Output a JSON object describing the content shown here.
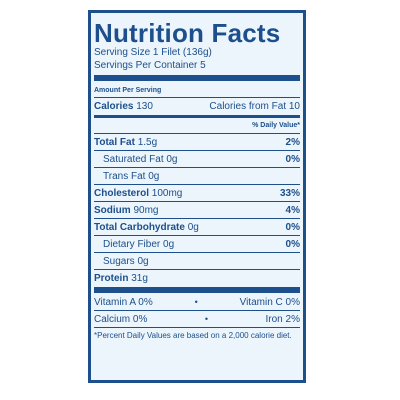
{
  "title": "Nutrition Facts",
  "serving_size": "Serving Size 1 Filet (136g)",
  "servings_per_container": "Servings Per Container 5",
  "amount_per_serving": "Amount Per Serving",
  "calories": {
    "label": "Calories",
    "value": "130",
    "fat_label": "Calories from Fat",
    "fat_value": "10"
  },
  "daily_value_header": "% Daily Value*",
  "nutrients": [
    {
      "label": "Total Fat",
      "amount": "1.5g",
      "dv": "2%"
    },
    {
      "label": "Saturated Fat",
      "amount": "0g",
      "dv": "0%"
    },
    {
      "label": "Trans Fat",
      "amount": "0g",
      "dv": ""
    },
    {
      "label": "Cholesterol",
      "amount": "100mg",
      "dv": "33%"
    },
    {
      "label": "Sodium",
      "amount": "90mg",
      "dv": "4%"
    },
    {
      "label": "Total Carbohydrate",
      "amount": "0g",
      "dv": "0%"
    },
    {
      "label": "Dietary Fiber",
      "amount": "0g",
      "dv": "0%"
    },
    {
      "label": "Sugars",
      "amount": "0g",
      "dv": ""
    },
    {
      "label": "Protein",
      "amount": "31g",
      "dv": ""
    }
  ],
  "vitamins": [
    {
      "left": "Vitamin A 0%",
      "right": "Vitamin C 0%"
    },
    {
      "left": "Calcium 0%",
      "right": "Iron 2%"
    }
  ],
  "bullet": "•",
  "footnote": "*Percent Daily Values are based on a 2,000 calorie diet.",
  "colors": {
    "text": "#1c4f8c",
    "panel_bg": "#ecf5fb"
  }
}
